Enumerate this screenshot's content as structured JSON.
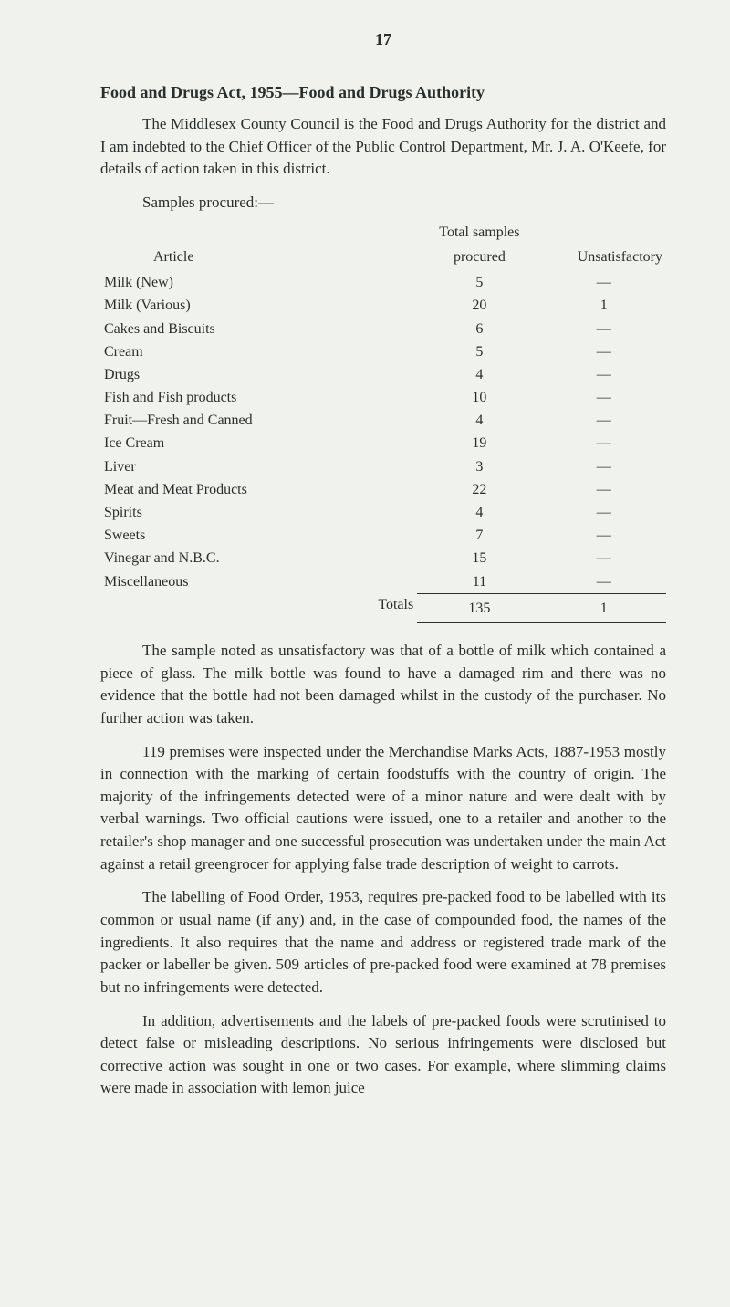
{
  "page_number": "17",
  "heading": "Food and Drugs Act, 1955—Food and Drugs Authority",
  "intro_paragraph": "The Middlesex County Council is the Food and Drugs Authority for the district and I am indebted to the Chief Officer of the Public Control Department, Mr. J. A. O'Keefe, for details of action taken in this district.",
  "samples_subhead": "Samples procured:—",
  "table": {
    "header_article": "Article",
    "header_procured_top": "Total samples",
    "header_procured_bottom": "procured",
    "header_unsat": "Unsatisfactory",
    "rows": [
      {
        "article": "Milk (New)",
        "procured": "5",
        "unsat": "—"
      },
      {
        "article": "Milk (Various)",
        "procured": "20",
        "unsat": "1"
      },
      {
        "article": "Cakes and Biscuits",
        "procured": "6",
        "unsat": "—"
      },
      {
        "article": "Cream",
        "procured": "5",
        "unsat": "—"
      },
      {
        "article": "Drugs",
        "procured": "4",
        "unsat": "—"
      },
      {
        "article": "Fish and Fish products",
        "procured": "10",
        "unsat": "—"
      },
      {
        "article": "Fruit—Fresh and Canned",
        "procured": "4",
        "unsat": "—"
      },
      {
        "article": "Ice Cream",
        "procured": "19",
        "unsat": "—"
      },
      {
        "article": "Liver",
        "procured": "3",
        "unsat": "—"
      },
      {
        "article": "Meat and Meat Products",
        "procured": "22",
        "unsat": "—"
      },
      {
        "article": "Spirits",
        "procured": "4",
        "unsat": "—"
      },
      {
        "article": "Sweets",
        "procured": "7",
        "unsat": "—"
      },
      {
        "article": "Vinegar and N.B.C.",
        "procured": "15",
        "unsat": "—"
      },
      {
        "article": "Miscellaneous",
        "procured": "11",
        "unsat": "—"
      }
    ],
    "totals_label": "Totals",
    "totals_procured": "135",
    "totals_unsat": "1"
  },
  "paragraphs": [
    "The sample noted as unsatisfactory was that of a bottle of milk which contained a piece of glass. The milk bottle was found to have a damaged rim and there was no evidence that the bottle had not been damaged whilst in the custody of the purchaser. No further action was taken.",
    "119 premises were inspected under the Merchandise Marks Acts, 1887-1953 mostly in connection with the marking of certain foodstuffs with the country of origin. The majority of the infringements detected were of a minor nature and were dealt with by verbal warnings. Two official cautions were issued, one to a retailer and another to the retailer's shop manager and one successful prosecution was undertaken under the main Act against a retail greengrocer for applying false trade description of weight to carrots.",
    "The labelling of Food Order, 1953, requires pre-packed food to be labelled with its common or usual name (if any) and, in the case of compounded food, the names of the ingredients. It also requires that the name and address or registered trade mark of the packer or labeller be given. 509 articles of pre-packed food were examined at 78 premises but no infringements were detected.",
    "In addition, advertisements and the labels of pre-packed foods were scrutinised to detect false or misleading descriptions. No serious infringements were disclosed but corrective action was sought in one or two cases. For example, where slimming claims were made in association with lemon juice"
  ]
}
